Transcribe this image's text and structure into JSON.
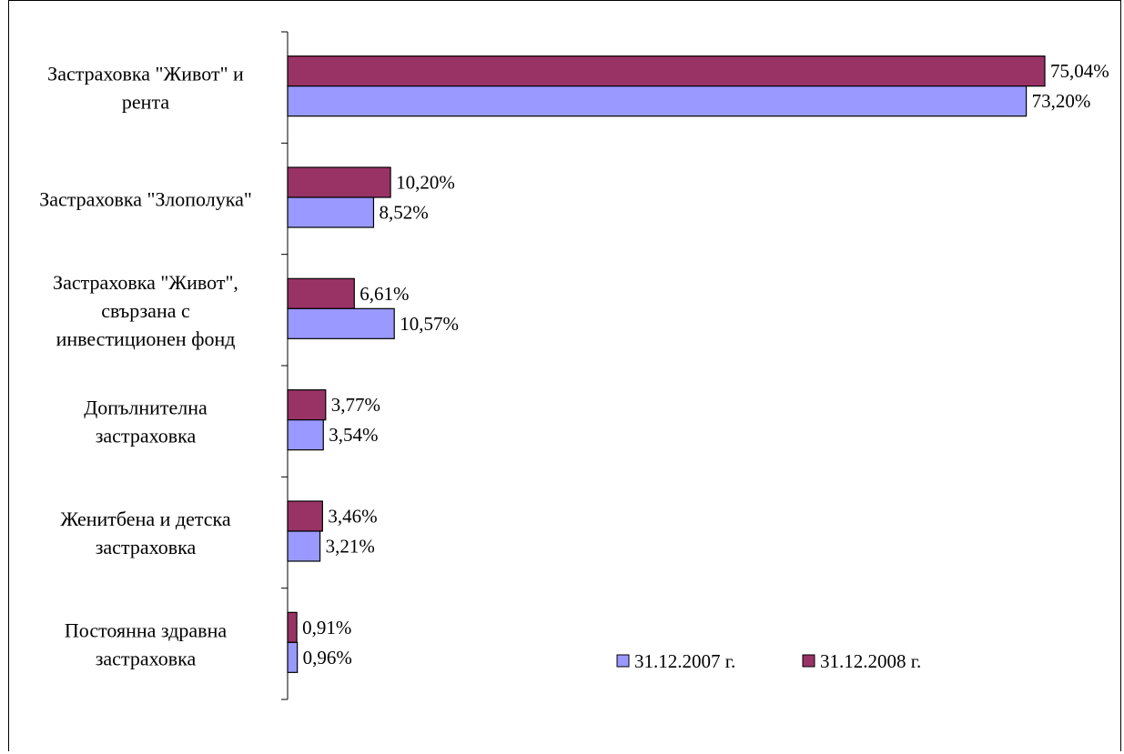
{
  "chart_data": {
    "type": "bar",
    "orientation": "horizontal",
    "categories": [
      [
        "Застраховка \"Живот\" и",
        "рента"
      ],
      [
        "Застраховка \"Злополука\""
      ],
      [
        "Застраховка \"Живот\",",
        "свързана с",
        "инвестиционен фонд"
      ],
      [
        "Допълнителна",
        "застраховка"
      ],
      [
        "Женитбена и детска",
        "застраховка"
      ],
      [
        "Постоянна здравна",
        "застраховка"
      ]
    ],
    "series": [
      {
        "name": "31.12.2008 г.",
        "color": "#993366",
        "values": [
          75.04,
          10.2,
          6.61,
          3.77,
          3.46,
          0.91
        ],
        "labels": [
          "75,04%",
          "10,20%",
          "6,61%",
          "3,77%",
          "3,46%",
          "0,91%"
        ]
      },
      {
        "name": "31.12.2007 г.",
        "color": "#9999FF",
        "values": [
          73.2,
          8.52,
          10.57,
          3.54,
          3.21,
          0.96
        ],
        "labels": [
          "73,20%",
          "8,52%",
          "10,57%",
          "3,54%",
          "3,21%",
          "0,96%"
        ]
      }
    ],
    "xlim": [
      0,
      75.04
    ],
    "grid": false,
    "legend_placement": "bottom-right",
    "legend_order": [
      "31.12.2007 г.",
      "31.12.2008 г."
    ]
  }
}
